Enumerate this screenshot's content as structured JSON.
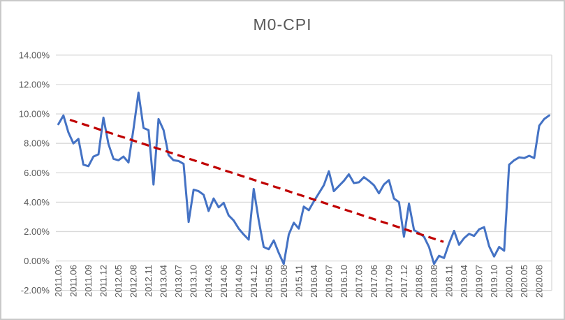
{
  "title": "M0-CPI",
  "colors": {
    "series_line": "#4472C4",
    "trendline": "#C00000",
    "gridline": "#D9D9D9",
    "axis_text": "#595959",
    "title_text": "#595959",
    "frame_border": "#C9C9C9",
    "background": "#FFFFFF"
  },
  "chart_data": {
    "type": "line",
    "title": "M0-CPI",
    "grid": true,
    "legend_position": "none",
    "y_axis": {
      "min": -2,
      "max": 14,
      "step": 2,
      "format": "percent",
      "tick_labels": [
        "-2.00%",
        "0.00%",
        "2.00%",
        "4.00%",
        "6.00%",
        "8.00%",
        "10.00%",
        "12.00%",
        "14.00%"
      ]
    },
    "x_tick_labels": [
      "2011.03",
      "2011.06",
      "2011.09",
      "2011.12",
      "2012.05",
      "2012.08",
      "2012.11",
      "2013.04",
      "2013.07",
      "2013.10",
      "2014.03",
      "2014.06",
      "2014.09",
      "2014.12",
      "2015.05",
      "2015.08",
      "2015.11",
      "2016.04",
      "2016.07",
      "2016.10",
      "2017.03",
      "2017.06",
      "2017.09",
      "2017.12",
      "2018.05",
      "2018.08",
      "2018.11",
      "2019.04",
      "2019.07",
      "2019.10",
      "2020.01",
      "2020.05",
      "2020.08"
    ],
    "x_tick_every": 3,
    "x": [
      "2011.03",
      "2011.04",
      "2011.05",
      "2011.06",
      "2011.07",
      "2011.08",
      "2011.09",
      "2011.10",
      "2011.11",
      "2011.12",
      "2012.03",
      "2012.04",
      "2012.05",
      "2012.06",
      "2012.07",
      "2012.08",
      "2012.09",
      "2012.10",
      "2012.11",
      "2012.12",
      "2013.03",
      "2013.04",
      "2013.05",
      "2013.06",
      "2013.07",
      "2013.08",
      "2013.09",
      "2013.10",
      "2013.11",
      "2013.12",
      "2014.03",
      "2014.04",
      "2014.05",
      "2014.06",
      "2014.07",
      "2014.08",
      "2014.09",
      "2014.10",
      "2014.11",
      "2014.12",
      "2015.03",
      "2015.04",
      "2015.05",
      "2015.06",
      "2015.07",
      "2015.08",
      "2015.09",
      "2015.10",
      "2015.11",
      "2015.12",
      "2016.03",
      "2016.04",
      "2016.05",
      "2016.06",
      "2016.07",
      "2016.08",
      "2016.09",
      "2016.10",
      "2016.11",
      "2016.12",
      "2017.03",
      "2017.04",
      "2017.05",
      "2017.06",
      "2017.07",
      "2017.08",
      "2017.09",
      "2017.10",
      "2017.11",
      "2017.12",
      "2018.03",
      "2018.04",
      "2018.05",
      "2018.06",
      "2018.07",
      "2018.08",
      "2018.09",
      "2018.10",
      "2018.11",
      "2018.12",
      "2019.03",
      "2019.04",
      "2019.05",
      "2019.06",
      "2019.07",
      "2019.08",
      "2019.09",
      "2019.10",
      "2019.11",
      "2019.12",
      "2020.01",
      "2020.03",
      "2020.04",
      "2020.05",
      "2020.06",
      "2020.07",
      "2020.08",
      "2020.09",
      "2020.10"
    ],
    "series": [
      {
        "name": "M0-CPI",
        "unit": "%",
        "values": [
          9.3,
          9.9,
          8.75,
          8.0,
          8.3,
          6.55,
          6.45,
          7.1,
          7.25,
          9.75,
          7.95,
          6.95,
          6.85,
          7.1,
          6.7,
          9.0,
          11.45,
          9.05,
          8.9,
          5.2,
          9.65,
          8.9,
          7.2,
          6.85,
          6.8,
          6.6,
          2.65,
          4.85,
          4.75,
          4.5,
          3.4,
          4.25,
          3.65,
          3.95,
          3.1,
          2.75,
          2.2,
          1.8,
          1.45,
          4.9,
          2.75,
          0.95,
          0.8,
          1.4,
          0.55,
          -0.2,
          1.8,
          2.6,
          2.2,
          3.7,
          3.45,
          4.05,
          4.6,
          5.15,
          6.1,
          4.75,
          5.1,
          5.45,
          5.9,
          5.3,
          5.35,
          5.7,
          5.45,
          5.15,
          4.6,
          5.2,
          5.5,
          4.25,
          4.0,
          1.65,
          3.9,
          2.1,
          1.9,
          1.65,
          0.95,
          -0.2,
          0.35,
          0.2,
          1.2,
          2.05,
          1.1,
          1.55,
          1.85,
          1.7,
          2.15,
          2.3,
          1.0,
          0.3,
          0.95,
          0.7,
          6.55,
          6.85,
          7.05,
          7.0,
          7.15,
          7.0,
          9.2,
          9.65,
          9.9
        ]
      }
    ],
    "trendline": {
      "style": "dashed",
      "start": {
        "index": 2.3,
        "value": 9.6
      },
      "end": {
        "index": 76.9,
        "value": 1.3
      }
    }
  }
}
